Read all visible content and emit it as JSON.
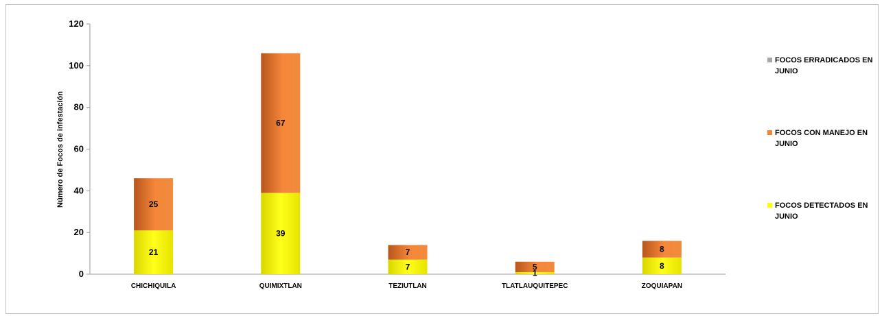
{
  "chart_data": {
    "type": "bar",
    "stacked": true,
    "categories": [
      "CHICHIQUILA",
      "QUIMIXTLAN",
      "TEZIUTLAN",
      "TLATLAUQUITEPEC",
      "ZOQUIAPAN"
    ],
    "series": [
      {
        "name": "FOCOS DETECTADOS EN JUNIO",
        "values": [
          21,
          39,
          7,
          1,
          8
        ],
        "labels": [
          "21",
          "39",
          "7",
          "1",
          "8"
        ],
        "color": "#FFFF00"
      },
      {
        "name": "FOCOS CON MANEJO EN JUNIO",
        "values": [
          25,
          67,
          7,
          5,
          8
        ],
        "labels": [
          "25",
          "67",
          "7",
          "5",
          "8"
        ],
        "color": "#F28533"
      },
      {
        "name": "FOCOS ERRADICADOS EN JUNIO",
        "values": [
          0,
          0,
          0,
          0,
          0
        ],
        "labels": [
          "",
          "",
          "",
          "",
          ""
        ],
        "color": "#A6A6A6"
      }
    ],
    "ylabel": "Número de Focos de infestación",
    "xlabel": "",
    "ylim": [
      0,
      120
    ],
    "yticks": [
      0,
      20,
      40,
      60,
      80,
      100,
      120
    ],
    "ytick_labels": [
      "0",
      "20",
      "40",
      "60",
      "80",
      "100",
      "120"
    ],
    "grid": false,
    "legend_position": "right"
  }
}
